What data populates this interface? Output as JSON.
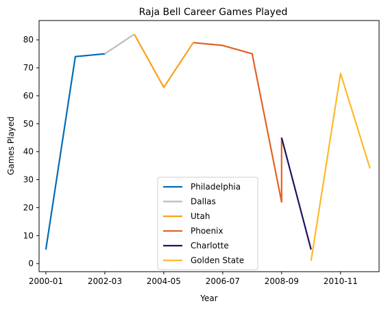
{
  "chart_data": {
    "type": "line",
    "title": "Raja Bell Career Games Played",
    "xlabel": "Year",
    "ylabel": "Games Played",
    "ylim": [
      -2.9,
      86.9
    ],
    "xlim": [
      "1999-10",
      "2012-04"
    ],
    "x_ticks": [
      "2000-01",
      "2002-03",
      "2004-05",
      "2006-07",
      "2008-09",
      "2010-11"
    ],
    "y_ticks": [
      0,
      10,
      20,
      30,
      40,
      50,
      60,
      70,
      80
    ],
    "grid": false,
    "legend_position": "lower-center",
    "series": [
      {
        "name": "Philadelphia",
        "color": "#006bb6",
        "points": [
          [
            "2000-01",
            5
          ],
          [
            "2001-02",
            74
          ],
          [
            "2002-03",
            75
          ]
        ]
      },
      {
        "name": "Dallas",
        "color": "#bbbbbb",
        "points": [
          [
            "2002-03",
            75
          ],
          [
            "2003-04",
            82
          ]
        ]
      },
      {
        "name": "Utah",
        "color": "#f9a01b",
        "points": [
          [
            "2003-04",
            82
          ],
          [
            "2004-05",
            63
          ],
          [
            "2005-06",
            79
          ]
        ]
      },
      {
        "name": "Phoenix",
        "color": "#e56020",
        "points": [
          [
            "2005-06",
            79
          ],
          [
            "2006-07",
            78
          ],
          [
            "2007-08",
            75
          ],
          [
            "2008-09",
            22
          ],
          [
            "2008-09",
            45
          ]
        ]
      },
      {
        "name": "Charlotte",
        "color": "#1d1160",
        "points": [
          [
            "2008-09",
            45
          ],
          [
            "2009-10",
            5
          ]
        ]
      },
      {
        "name": "Golden State",
        "color": "#fdb927",
        "points": [
          [
            "2009-10",
            1
          ],
          [
            "2010-11",
            68
          ],
          [
            "2011-12",
            34
          ]
        ]
      }
    ]
  }
}
